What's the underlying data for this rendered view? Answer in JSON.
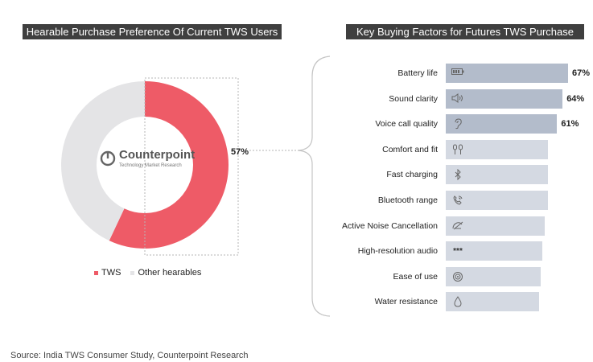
{
  "colors": {
    "banner_bg": "#3f3f3f",
    "tws": "#ee5b67",
    "other": "#e4e4e6",
    "bar_dark": "#b3bccb",
    "bar_light": "#d4d9e2"
  },
  "logo": {
    "name": "Counterpoint",
    "subtitle": "Technology Market Research"
  },
  "source": "Source: India TWS Consumer Study, Counterpoint Research",
  "chart_data": [
    {
      "type": "pie",
      "title": "Hearable Purchase Preference Of Current TWS Users",
      "donut": true,
      "slices": [
        {
          "name": "TWS",
          "value": 57,
          "label": "57%",
          "color": "#ee5b67"
        },
        {
          "name": "Other hearables",
          "value": 43,
          "label": "",
          "color": "#e4e4e6"
        }
      ],
      "legend": [
        "TWS",
        "Other hearables"
      ],
      "legend_position": "bottom"
    },
    {
      "type": "bar",
      "orientation": "horizontal",
      "title": "Key Buying Factors for Futures TWS Purchase",
      "xlim": [
        0,
        70
      ],
      "categories": [
        {
          "label": "Battery life",
          "icon": "battery-icon",
          "value": 67,
          "value_label": "67%"
        },
        {
          "label": "Sound clarity",
          "icon": "speaker-icon",
          "value": 64,
          "value_label": "64%"
        },
        {
          "label": "Voice call quality",
          "icon": "ear-icon",
          "value": 61,
          "value_label": "61%"
        },
        {
          "label": "Comfort and fit",
          "icon": "earbuds-icon",
          "value": 56,
          "value_label": ""
        },
        {
          "label": "Fast charging",
          "icon": "bluetooth-icon",
          "value": 56,
          "value_label": ""
        },
        {
          "label": "Bluetooth range",
          "icon": "phone-signal-icon",
          "value": 56,
          "value_label": ""
        },
        {
          "label": "Active Noise Cancellation",
          "icon": "mute-icon",
          "value": 54,
          "value_label": ""
        },
        {
          "label": "High-resolution audio",
          "icon": "stars-icon",
          "value": 53,
          "value_label": ""
        },
        {
          "label": "Ease of use",
          "icon": "touch-icon",
          "value": 52,
          "value_label": ""
        },
        {
          "label": "Water resistance",
          "icon": "water-drop-icon",
          "value": 51,
          "value_label": ""
        }
      ]
    }
  ]
}
